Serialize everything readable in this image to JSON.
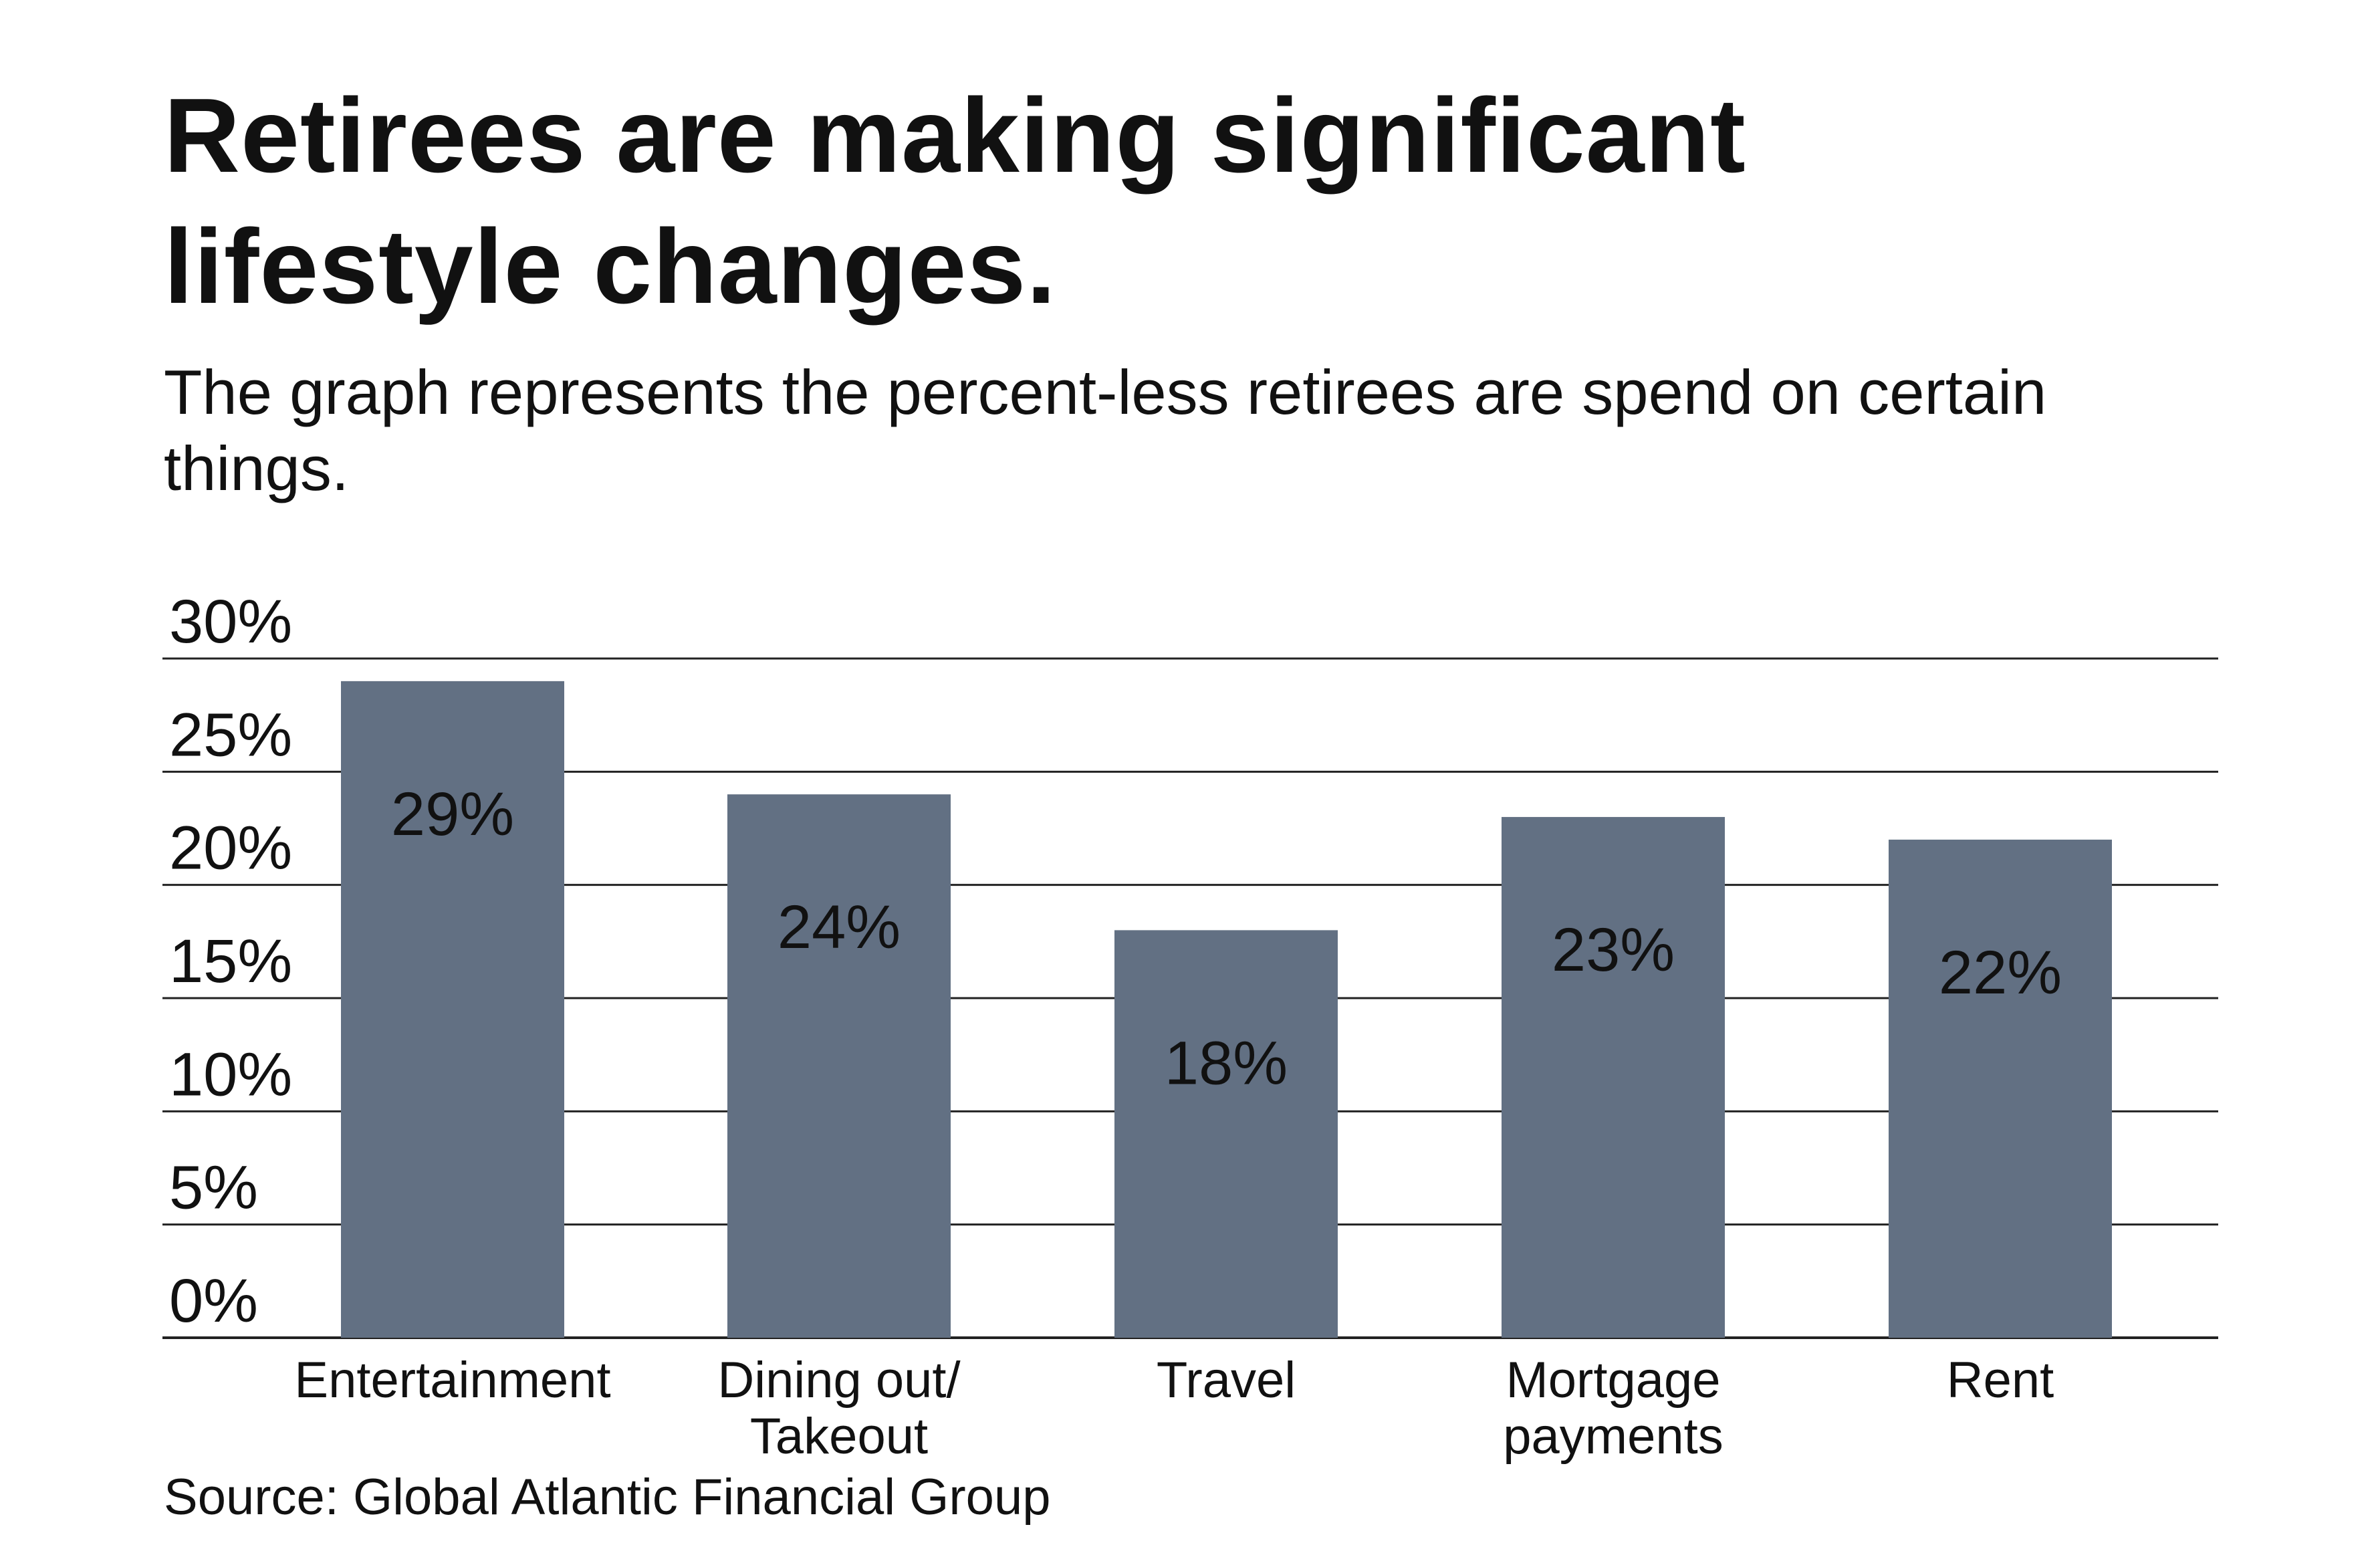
{
  "title": "Retirees are making significant lifestyle changes.",
  "subtitle": "The graph represents the percent-less retirees are spend on certain things.",
  "source": "Source: Global Atlantic Financial Group",
  "colors": {
    "bar": "#627083",
    "gridline": "#222222",
    "text": "#111111"
  },
  "chart_data": {
    "type": "bar",
    "categories": [
      [
        "Entertainment"
      ],
      [
        "Dining out/",
        "Takeout"
      ],
      [
        "Travel"
      ],
      [
        "Mortgage",
        "payments"
      ],
      [
        "Rent"
      ]
    ],
    "values": [
      29,
      24,
      18,
      23,
      22
    ],
    "data_labels": [
      "29%",
      "24%",
      "18%",
      "23%",
      "22%"
    ],
    "y_ticks": [
      "0%",
      "5%",
      "10%",
      "15%",
      "20%",
      "25%",
      "30%"
    ],
    "y_tick_values": [
      0,
      5,
      10,
      15,
      20,
      25,
      30
    ],
    "ylim": [
      0,
      30
    ],
    "grid": true,
    "xlabel": "",
    "ylabel": ""
  }
}
